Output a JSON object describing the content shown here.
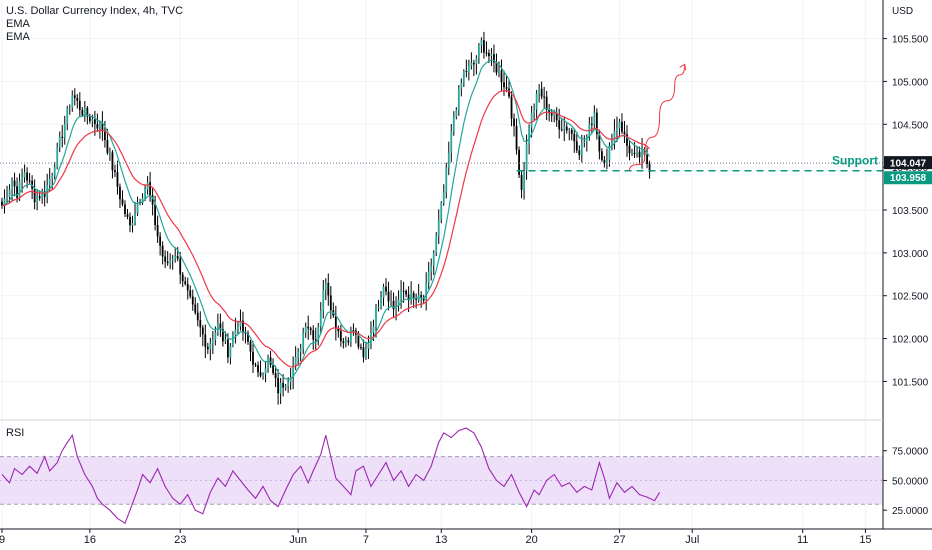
{
  "chart_data": {
    "type": "candlestick",
    "title": "U.S. Dollar Currency Index, 4h, TVC",
    "legend": [
      "EMA",
      "EMA"
    ],
    "y_unit": "USD",
    "y_ticks": [
      "105.500",
      "105.000",
      "104.500",
      "104.000",
      "103.500",
      "103.000",
      "102.500",
      "102.000",
      "101.500"
    ],
    "ylim": [
      101.05,
      105.95
    ],
    "x_ticks": [
      {
        "label": "9",
        "i": 0
      },
      {
        "label": "16",
        "i": 35
      },
      {
        "label": "23",
        "i": 71
      },
      {
        "label": "Jun",
        "i": 118
      },
      {
        "label": "7",
        "i": 145
      },
      {
        "label": "13",
        "i": 175
      },
      {
        "label": "20",
        "i": 211
      },
      {
        "label": "27",
        "i": 246
      },
      {
        "label": "Jul",
        "i": 275
      },
      {
        "label": "11",
        "i": 319
      },
      {
        "label": "15",
        "i": 344
      }
    ],
    "price_levels": {
      "last_price": "104.047",
      "last_price_value": 104.047,
      "support_price": "103.958",
      "support_value": 103.958,
      "support_label": "Support"
    },
    "projection": [
      {
        "i": 250,
        "y": 103.96
      },
      {
        "i": 256,
        "y": 104.1
      },
      {
        "i": 262,
        "y": 104.6
      },
      {
        "i": 268,
        "y": 104.95
      },
      {
        "i": 272,
        "y": 105.2
      }
    ],
    "rsi": {
      "label": "RSI",
      "ticks": [
        "75.0000",
        "50.0000",
        "25.0000"
      ],
      "ylim": [
        10,
        100
      ],
      "band": [
        30,
        70
      ],
      "keypoints": [
        [
          0,
          55
        ],
        [
          3,
          48
        ],
        [
          5,
          60
        ],
        [
          8,
          55
        ],
        [
          11,
          62
        ],
        [
          14,
          56
        ],
        [
          17,
          70
        ],
        [
          19,
          58
        ],
        [
          22,
          65
        ],
        [
          24,
          75
        ],
        [
          26,
          82
        ],
        [
          28,
          88
        ],
        [
          30,
          70
        ],
        [
          33,
          55
        ],
        [
          36,
          45
        ],
        [
          38,
          35
        ],
        [
          40,
          30
        ],
        [
          43,
          25
        ],
        [
          46,
          18
        ],
        [
          49,
          14
        ],
        [
          51,
          25
        ],
        [
          54,
          42
        ],
        [
          56,
          55
        ],
        [
          59,
          48
        ],
        [
          62,
          60
        ],
        [
          65,
          45
        ],
        [
          68,
          35
        ],
        [
          71,
          30
        ],
        [
          74,
          38
        ],
        [
          77,
          25
        ],
        [
          80,
          22
        ],
        [
          83,
          40
        ],
        [
          86,
          52
        ],
        [
          89,
          45
        ],
        [
          92,
          58
        ],
        [
          95,
          50
        ],
        [
          98,
          42
        ],
        [
          101,
          35
        ],
        [
          104,
          45
        ],
        [
          107,
          33
        ],
        [
          110,
          28
        ],
        [
          113,
          42
        ],
        [
          116,
          55
        ],
        [
          119,
          62
        ],
        [
          122,
          48
        ],
        [
          124,
          58
        ],
        [
          127,
          72
        ],
        [
          129,
          88
        ],
        [
          131,
          70
        ],
        [
          133,
          52
        ],
        [
          136,
          45
        ],
        [
          139,
          38
        ],
        [
          141,
          58
        ],
        [
          144,
          62
        ],
        [
          147,
          45
        ],
        [
          150,
          55
        ],
        [
          153,
          65
        ],
        [
          156,
          50
        ],
        [
          159,
          58
        ],
        [
          162,
          45
        ],
        [
          165,
          55
        ],
        [
          168,
          50
        ],
        [
          171,
          62
        ],
        [
          174,
          82
        ],
        [
          176,
          90
        ],
        [
          179,
          86
        ],
        [
          182,
          92
        ],
        [
          185,
          94
        ],
        [
          188,
          90
        ],
        [
          191,
          78
        ],
        [
          194,
          60
        ],
        [
          197,
          50
        ],
        [
          200,
          45
        ],
        [
          203,
          55
        ],
        [
          206,
          40
        ],
        [
          209,
          28
        ],
        [
          212,
          42
        ],
        [
          214,
          38
        ],
        [
          217,
          50
        ],
        [
          220,
          55
        ],
        [
          223,
          45
        ],
        [
          226,
          48
        ],
        [
          229,
          40
        ],
        [
          232,
          45
        ],
        [
          235,
          42
        ],
        [
          238,
          65
        ],
        [
          240,
          52
        ],
        [
          242,
          35
        ],
        [
          245,
          48
        ],
        [
          248,
          40
        ],
        [
          251,
          45
        ],
        [
          254,
          38
        ],
        [
          257,
          36
        ],
        [
          260,
          33
        ],
        [
          262,
          40
        ]
      ]
    },
    "colors": {
      "bull": "#26a69a",
      "bear": "#000000",
      "wick": "#000000",
      "ema_fast": "#26a69a",
      "ema_slow": "#f23645",
      "support_line": "#089981",
      "projection": "#f23645",
      "rsi_line": "#9c27b0",
      "rsi_band": "#ede0f8",
      "grid": "#f0f3fa",
      "axis": "#131722",
      "last_price_bg": "#131722",
      "support_bg": "#089981"
    }
  }
}
